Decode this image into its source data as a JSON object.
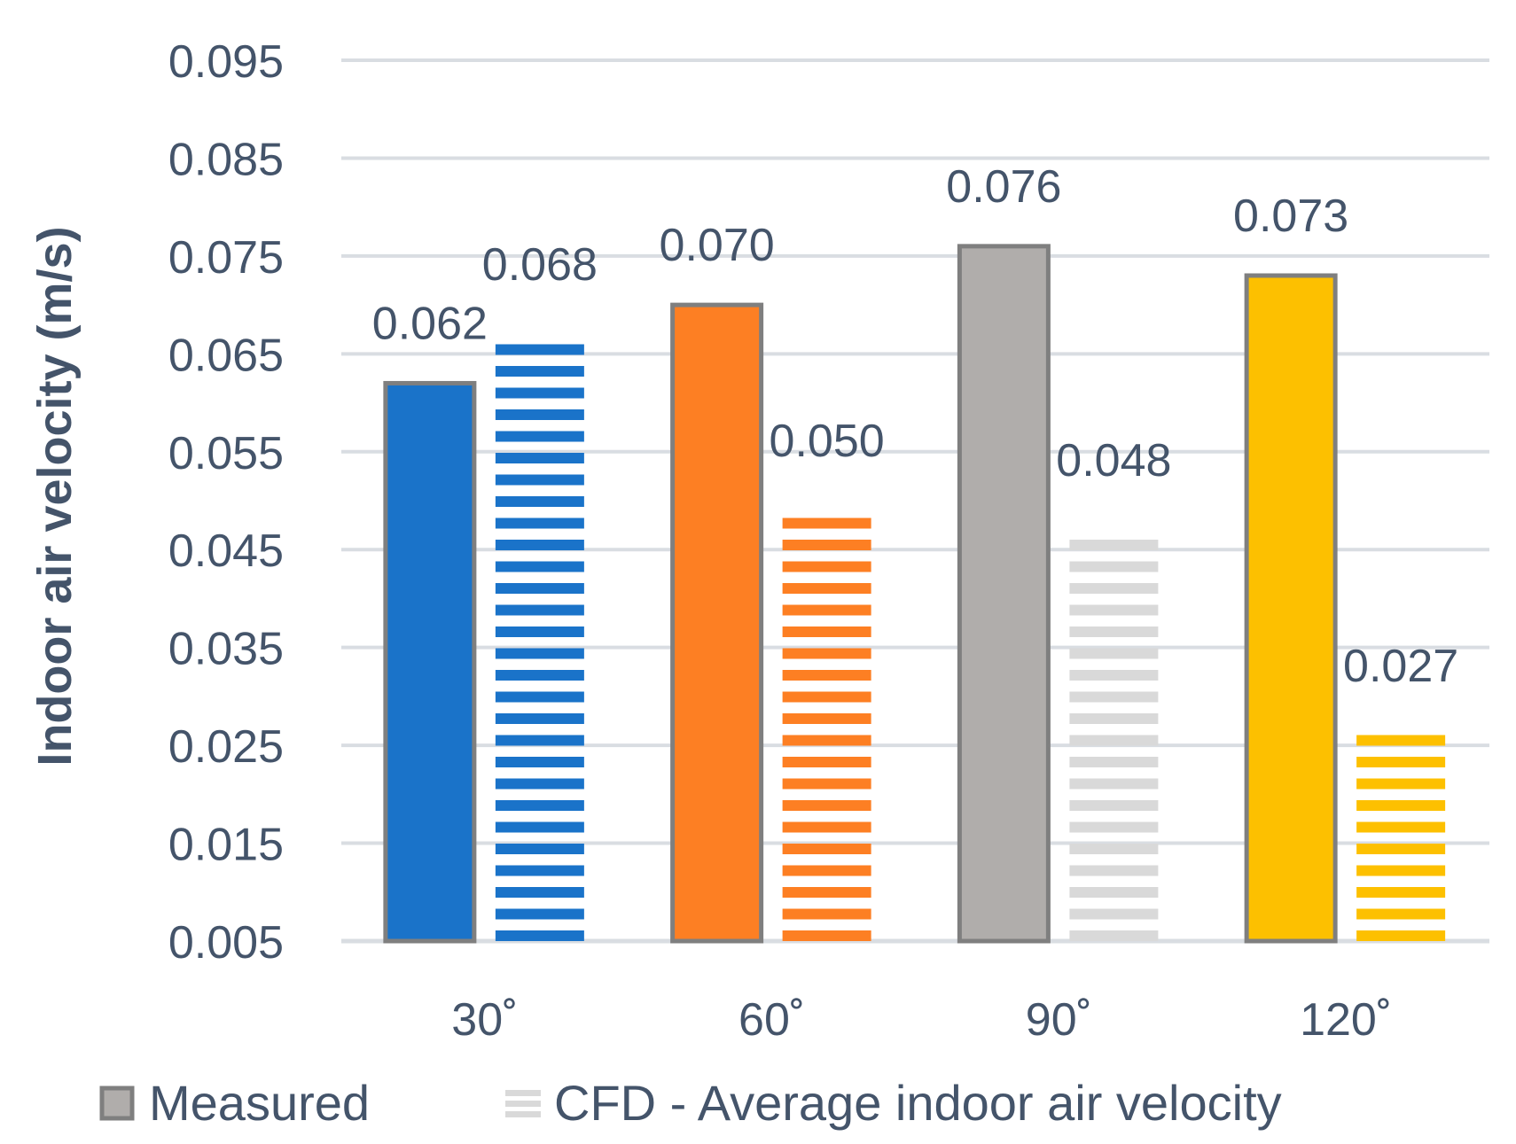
{
  "chart_data": {
    "type": "bar",
    "title": "",
    "xlabel": "",
    "ylabel": "Indoor air velocity (m/s)",
    "ylim": [
      0.005,
      0.095
    ],
    "yticks": [
      "0.005",
      "0.015",
      "0.025",
      "0.035",
      "0.045",
      "0.055",
      "0.065",
      "0.075",
      "0.085",
      "0.095"
    ],
    "categories": [
      "30˚",
      "60˚",
      "90˚",
      "120˚"
    ],
    "category_colors": [
      "#1a73c9",
      "#fd7f23",
      "#b0adab",
      "#fdc000"
    ],
    "grid": true,
    "legend_position": "bottom",
    "series": [
      {
        "name": "Measured",
        "style": "solid-with-gray-border",
        "values": [
          0.062,
          0.07,
          0.076,
          0.073
        ],
        "labels": [
          "0.062",
          "0.070",
          "0.076",
          "0.073"
        ]
      },
      {
        "name": "CFD - Average indoor air velocity",
        "style": "horizontal-stripes",
        "values": [
          0.068,
          0.05,
          0.048,
          0.027
        ],
        "labels": [
          "0.068",
          "0.050",
          "0.048",
          "0.027"
        ]
      }
    ]
  },
  "legend": {
    "measured_label": "Measured",
    "cfd_label": "CFD - Average indoor air velocity",
    "measured_color": "#b0adab",
    "cfd_color": "#d9d9d9"
  }
}
